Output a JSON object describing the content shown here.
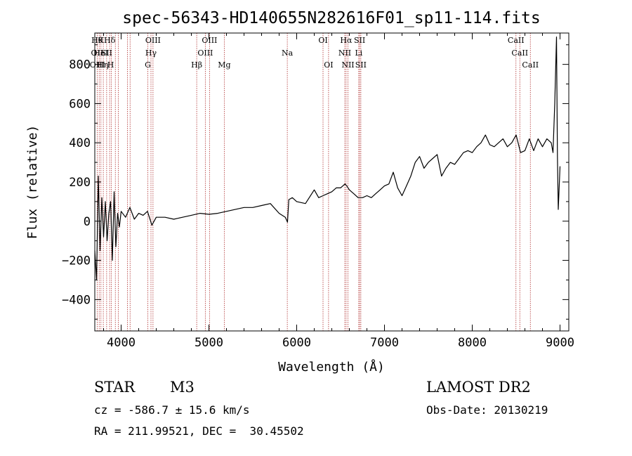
{
  "chart_data": {
    "type": "line",
    "title": "spec-56343-HD140655N282616F01_sp11-114.fits",
    "xlabel": "Wavelength (Å)",
    "ylabel": "Flux (relative)",
    "xlim": [
      3700,
      9100
    ],
    "ylim": [
      -560,
      960
    ],
    "x_ticks": [
      4000,
      5000,
      6000,
      7000,
      8000,
      9000
    ],
    "y_ticks": [
      -400,
      -200,
      0,
      200,
      400,
      600,
      800
    ],
    "grid": false,
    "legend": "none",
    "series": [
      {
        "x": [
          3700,
          3720,
          3740,
          3760,
          3780,
          3800,
          3820,
          3840,
          3860,
          3880,
          3900,
          3920,
          3940,
          3960,
          3980,
          4000,
          4050,
          4100,
          4150,
          4200,
          4250,
          4300,
          4350,
          4400,
          4500,
          4600,
          4700,
          4800,
          4900,
          5000,
          5100,
          5200,
          5300,
          5400,
          5500,
          5600,
          5700,
          5800,
          5870,
          5895,
          5910,
          5950,
          6000,
          6100,
          6200,
          6250,
          6300,
          6350,
          6400,
          6450,
          6500,
          6550,
          6570,
          6600,
          6650,
          6700,
          6750,
          6800,
          6850,
          6900,
          6950,
          7000,
          7050,
          7100,
          7150,
          7200,
          7250,
          7300,
          7350,
          7400,
          7450,
          7500,
          7550,
          7600,
          7650,
          7700,
          7750,
          7800,
          7850,
          7900,
          7950,
          8000,
          8050,
          8100,
          8150,
          8200,
          8250,
          8300,
          8350,
          8400,
          8450,
          8500,
          8550,
          8600,
          8650,
          8700,
          8750,
          8800,
          8850,
          8900,
          8920,
          8940,
          8960,
          8970,
          8980,
          9000
        ],
        "y": [
          -150,
          -300,
          230,
          -150,
          120,
          -80,
          100,
          -100,
          40,
          100,
          -200,
          150,
          -130,
          40,
          -30,
          50,
          20,
          70,
          10,
          40,
          30,
          50,
          -20,
          20,
          20,
          10,
          20,
          30,
          40,
          35,
          40,
          50,
          60,
          70,
          70,
          80,
          90,
          40,
          20,
          -5,
          110,
          120,
          100,
          90,
          160,
          120,
          130,
          140,
          150,
          170,
          170,
          190,
          180,
          160,
          140,
          120,
          120,
          130,
          120,
          140,
          160,
          180,
          190,
          250,
          170,
          130,
          180,
          230,
          300,
          330,
          270,
          300,
          320,
          340,
          230,
          270,
          300,
          290,
          320,
          350,
          360,
          350,
          380,
          400,
          440,
          390,
          380,
          400,
          420,
          380,
          400,
          440,
          350,
          360,
          420,
          360,
          420,
          380,
          420,
          400,
          350,
          600,
          940,
          330,
          60,
          280
        ]
      }
    ],
    "line_labels": {
      "top": [
        {
          "x": 3726,
          "text": "Hθ"
        },
        {
          "x": 3768,
          "text": "K"
        },
        {
          "x": 3869,
          "text": "Hδ"
        },
        {
          "x": 4363,
          "text": "OIII"
        },
        {
          "x": 5007,
          "text": "OIII"
        },
        {
          "x": 6300,
          "text": "OI"
        },
        {
          "x": 6563,
          "text": "Hα"
        },
        {
          "x": 6717,
          "text": "SII"
        },
        {
          "x": 8498,
          "text": "CaII"
        }
      ],
      "middle": [
        {
          "x": 3727,
          "text": "OII"
        },
        {
          "x": 3770,
          "text": "HeI"
        },
        {
          "x": 3835,
          "text": "SII"
        },
        {
          "x": 4340,
          "text": "Hγ"
        },
        {
          "x": 4959,
          "text": "OIII"
        },
        {
          "x": 5893,
          "text": "Na"
        },
        {
          "x": 6548,
          "text": "NII"
        },
        {
          "x": 6707,
          "text": "Li"
        },
        {
          "x": 8542,
          "text": "CaII"
        }
      ],
      "bottom": [
        {
          "x": 3730,
          "text": "OIII"
        },
        {
          "x": 3790,
          "text": "Hη"
        },
        {
          "x": 3880,
          "text": "H"
        },
        {
          "x": 4304,
          "text": "G"
        },
        {
          "x": 4861,
          "text": "Hβ"
        },
        {
          "x": 5175,
          "text": "Mg"
        },
        {
          "x": 6363,
          "text": "OI"
        },
        {
          "x": 6584,
          "text": "NII"
        },
        {
          "x": 6731,
          "text": "SII"
        },
        {
          "x": 8662,
          "text": "CaII"
        }
      ]
    },
    "marker_lines": [
      3727,
      3750,
      3770,
      3797,
      3835,
      3869,
      3889,
      3934,
      3968,
      4072,
      4102,
      4304,
      4340,
      4363,
      4861,
      4959,
      5007,
      5175,
      5893,
      6300,
      6363,
      6548,
      6563,
      6584,
      6707,
      6717,
      6731,
      8498,
      8542,
      8662
    ]
  },
  "info": {
    "object_class": "STAR",
    "subclass": "M3",
    "survey": "LAMOST DR2",
    "cz": "cz = -586.7 ± 15.6 km/s",
    "obs_date": "Obs-Date: 20130219",
    "coords": "RA = 211.99521, DEC =  30.45502"
  },
  "colors": {
    "line": "#000000",
    "marker": "#b03030"
  }
}
